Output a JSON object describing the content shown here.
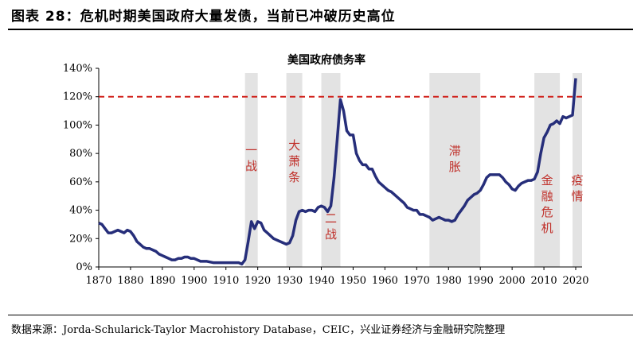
{
  "figure": {
    "title": "图表 28：危机时期美国政府大量发债，当前已冲破历史高位",
    "source": "数据来源：Jorda-Schularick-Taylor Macrohistory Database，CEIC，兴业证券经济与金融研究院整理"
  },
  "chart_data": {
    "type": "line",
    "title": "美国政府债务率",
    "xlabel": "",
    "ylabel": "",
    "xlim": [
      1870,
      2022
    ],
    "ylim": [
      0,
      140
    ],
    "x_ticks": [
      "1870",
      "1880",
      "1890",
      "1900",
      "1910",
      "1920",
      "1930",
      "1940",
      "1950",
      "1960",
      "1970",
      "1980",
      "1990",
      "2000",
      "2010",
      "2020"
    ],
    "y_ticks": [
      "0%",
      "20%",
      "40%",
      "60%",
      "80%",
      "100%",
      "120%",
      "140%"
    ],
    "grid": false,
    "reference_line": {
      "value": 120,
      "style": "dashed",
      "color": "#d0201a"
    },
    "line_color": "#262e7a",
    "band_color": "#e3e3e3",
    "event_color": "#c0302a",
    "shaded_periods": [
      {
        "label": "一战",
        "start": 1916,
        "end": 1920
      },
      {
        "label": "大萧条",
        "start": 1929,
        "end": 1934
      },
      {
        "label": "二战",
        "start": 1940,
        "end": 1946
      },
      {
        "label": "滞胀",
        "start": 1974,
        "end": 1990
      },
      {
        "label": "金融危机",
        "start": 2007,
        "end": 2015
      },
      {
        "label": "疫情",
        "start": 2019,
        "end": 2022
      }
    ],
    "series": [
      {
        "x": [
          1870,
          1871,
          1872,
          1873,
          1874,
          1875,
          1876,
          1877,
          1878,
          1879,
          1880,
          1881,
          1882,
          1883,
          1884,
          1885,
          1886,
          1887,
          1888,
          1889,
          1890,
          1891,
          1892,
          1893,
          1894,
          1895,
          1896,
          1897,
          1898,
          1899,
          1900,
          1902,
          1904,
          1906,
          1908,
          1910,
          1912,
          1914,
          1915,
          1916,
          1917,
          1918,
          1919,
          1920,
          1921,
          1922,
          1923,
          1925,
          1927,
          1929,
          1930,
          1931,
          1932,
          1933,
          1934,
          1935,
          1936,
          1937,
          1938,
          1939,
          1940,
          1941,
          1942,
          1943,
          1944,
          1945,
          1946,
          1947,
          1948,
          1949,
          1950,
          1951,
          1952,
          1953,
          1954,
          1955,
          1956,
          1957,
          1958,
          1959,
          1960,
          1961,
          1962,
          1963,
          1964,
          1965,
          1966,
          1967,
          1968,
          1969,
          1970,
          1971,
          1972,
          1973,
          1974,
          1975,
          1976,
          1977,
          1978,
          1979,
          1980,
          1981,
          1982,
          1983,
          1984,
          1985,
          1986,
          1987,
          1988,
          1989,
          1990,
          1991,
          1992,
          1993,
          1994,
          1995,
          1996,
          1997,
          1998,
          1999,
          2000,
          2001,
          2002,
          2003,
          2004,
          2005,
          2006,
          2007,
          2008,
          2009,
          2010,
          2011,
          2012,
          2013,
          2014,
          2015,
          2016,
          2017,
          2018,
          2019,
          2020
        ],
        "values": [
          31,
          30,
          27,
          24,
          24,
          25,
          26,
          25,
          24,
          26,
          25,
          22,
          18,
          16,
          14,
          13,
          13,
          12,
          11,
          9,
          8,
          7,
          6,
          5,
          5,
          6,
          6,
          7,
          7,
          6,
          6,
          4,
          4,
          3,
          3,
          3,
          3,
          3,
          2,
          5,
          18,
          32,
          27,
          32,
          31,
          26,
          24,
          20,
          18,
          16,
          17,
          22,
          33,
          39,
          40,
          39,
          40,
          40,
          39,
          42,
          43,
          42,
          39,
          43,
          63,
          90,
          118,
          110,
          96,
          93,
          93,
          80,
          75,
          72,
          72,
          69,
          69,
          64,
          60,
          58,
          56,
          54,
          53,
          51,
          49,
          47,
          45,
          42,
          41,
          40,
          40,
          37,
          37,
          36,
          35,
          33,
          34,
          35,
          34,
          33,
          33,
          32,
          33,
          37,
          40,
          43,
          47,
          49,
          51,
          52,
          54,
          58,
          63,
          65,
          65,
          65,
          65,
          63,
          60,
          58,
          55,
          54,
          57,
          59,
          60,
          61,
          61,
          62,
          67,
          80,
          91,
          95,
          100,
          101,
          103,
          101,
          106,
          105,
          106,
          107,
          133
        ]
      }
    ]
  }
}
